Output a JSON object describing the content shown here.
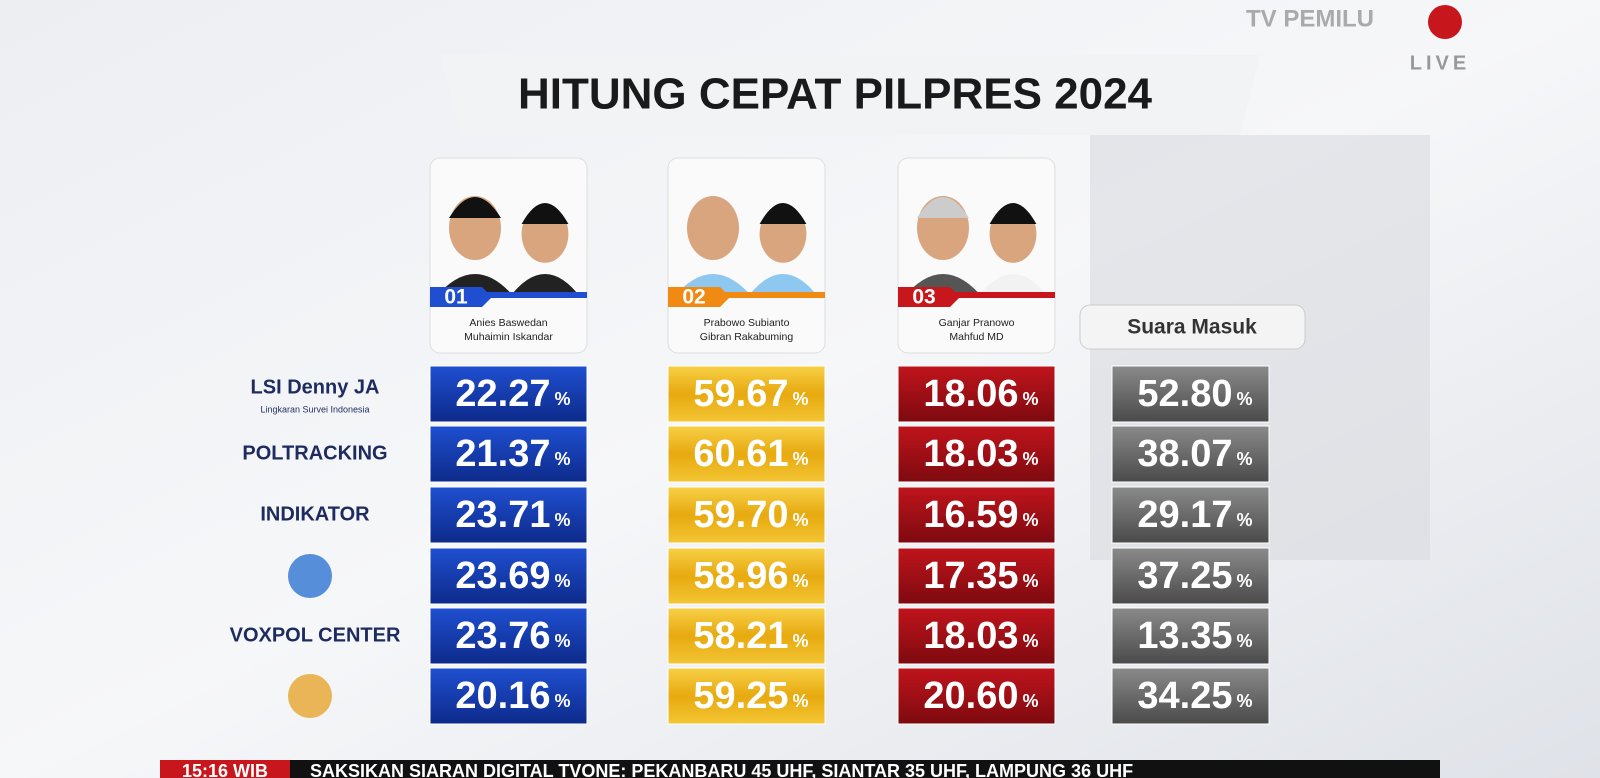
{
  "header": {
    "title": "HITUNG CEPAT PILPRES 2024",
    "channel": "TV PEMILU",
    "live": "LIVE"
  },
  "candidates": [
    {
      "number": "01",
      "names": [
        "Anies Baswedan",
        "Muhaimin Iskandar"
      ]
    },
    {
      "number": "02",
      "names": [
        "Prabowo Subianto",
        "Gibran Rakabuming"
      ]
    },
    {
      "number": "03",
      "names": [
        "Ganjar Pranowo",
        "Mahfud MD"
      ]
    }
  ],
  "table": {
    "column_header": "Suara Masuk",
    "unit": "%",
    "rows": [
      {
        "pollster": "LSI Denny JA",
        "pollster_sub": "Lingkaran Survei Indonesia",
        "values": [
          "22.27",
          "59.67",
          "18.06",
          "52.80"
        ]
      },
      {
        "pollster": "POLTRACKING",
        "values": [
          "21.37",
          "60.61",
          "18.03",
          "38.07"
        ]
      },
      {
        "pollster": "INDIKATOR",
        "values": [
          "23.71",
          "59.70",
          "16.59",
          "29.17"
        ]
      },
      {
        "pollster": null,
        "values": [
          "23.69",
          "58.96",
          "17.35",
          "37.25"
        ]
      },
      {
        "pollster": "VOXPOL CENTER",
        "values": [
          "23.76",
          "58.21",
          "18.03",
          "13.35"
        ]
      },
      {
        "pollster": null,
        "values": [
          "20.16",
          "59.25",
          "20.60",
          "34.25"
        ]
      }
    ]
  },
  "ticker": {
    "time": "15:16 WIB",
    "text": "SAKSIKAN SIARAN DIGITAL TVONE: PEKANBARU 45 UHF, SIANTAR 35 UHF, LAMPUNG 36 UHF"
  }
}
